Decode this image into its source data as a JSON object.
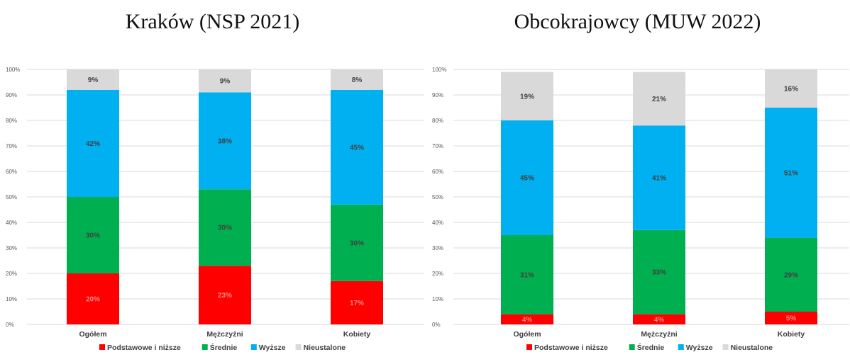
{
  "colors": {
    "podstawowe": "#ff0000",
    "srednie": "#00b050",
    "wyzsze": "#00b0f0",
    "nieustalone": "#d9d9d9",
    "grid": "#d9d9d9"
  },
  "legend": [
    "Podstawowe i niższe",
    "Średnie",
    "Wyższe",
    "Nieustalone"
  ],
  "chart_data": [
    {
      "type": "bar",
      "stacked": true,
      "title": "Kraków (NSP 2021)",
      "categories": [
        "Ogółem",
        "Mężczyźni",
        "Kobiety"
      ],
      "ylim": [
        0,
        100
      ],
      "yticks": [
        "0%",
        "10%",
        "20%",
        "30%",
        "40%",
        "50%",
        "60%",
        "70%",
        "80%",
        "90%",
        "100%"
      ],
      "grid": true,
      "legend_position": "bottom",
      "series": [
        {
          "name": "Podstawowe i niższe",
          "color": "#ff0000",
          "values": [
            20,
            23,
            17
          ],
          "labels": [
            "20%",
            "23%",
            "17%"
          ]
        },
        {
          "name": "Średnie",
          "color": "#00b050",
          "values": [
            30,
            30,
            30
          ],
          "labels": [
            "30%",
            "30%",
            "30%"
          ]
        },
        {
          "name": "Wyższe",
          "color": "#00b0f0",
          "values": [
            42,
            38,
            45
          ],
          "labels": [
            "42%",
            "38%",
            "45%"
          ]
        },
        {
          "name": "Nieustalone",
          "color": "#d9d9d9",
          "values": [
            9,
            9,
            8
          ],
          "labels": [
            "9%",
            "9%",
            "8%"
          ]
        }
      ]
    },
    {
      "type": "bar",
      "stacked": true,
      "title": "Obcokrajowcy (MUW 2022)",
      "categories": [
        "Ogółem",
        "Mężczyźni",
        "Kobiety"
      ],
      "ylim": [
        0,
        100
      ],
      "yticks": [
        "0%",
        "10%",
        "20%",
        "30%",
        "40%",
        "50%",
        "60%",
        "70%",
        "80%",
        "90%",
        "100%"
      ],
      "grid": true,
      "legend_position": "bottom",
      "series": [
        {
          "name": "Podstawowe i niższe",
          "color": "#ff0000",
          "values": [
            4,
            4,
            5
          ],
          "labels": [
            "4%",
            "4%",
            "5%"
          ]
        },
        {
          "name": "Średnie",
          "color": "#00b050",
          "values": [
            31,
            33,
            29
          ],
          "labels": [
            "31%",
            "33%",
            "29%"
          ]
        },
        {
          "name": "Wyższe",
          "color": "#00b0f0",
          "values": [
            45,
            41,
            51
          ],
          "labels": [
            "45%",
            "41%",
            "51%"
          ]
        },
        {
          "name": "Nieustalone",
          "color": "#d9d9d9",
          "values": [
            19,
            21,
            16
          ],
          "labels": [
            "19%",
            "21%",
            "16%"
          ]
        }
      ]
    }
  ]
}
